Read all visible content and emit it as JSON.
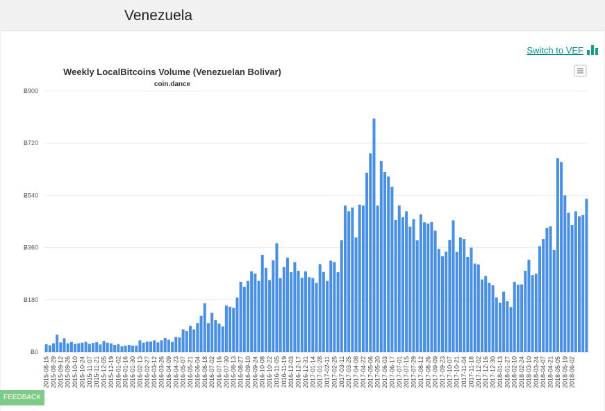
{
  "page": {
    "country": "Venezuela"
  },
  "toolbar": {
    "switch_label": "Switch to VEF",
    "switch_icon": "bar-chart-icon",
    "menu_icon": "hamburger-menu-icon"
  },
  "feedback": {
    "label": "FEEDBACK"
  },
  "colors": {
    "bar": "#4a90e2",
    "link": "#008c8c",
    "feedback": "#7ecb88"
  },
  "chart_data": {
    "type": "bar",
    "title": "Weekly LocalBitcoins Volume (Venezuelan Bolivar)",
    "subtitle": "coin.dance",
    "xlabel": "",
    "ylabel": "",
    "ylim": [
      0,
      900
    ],
    "yticks": [
      "Ƀ0",
      "Ƀ180",
      "Ƀ360",
      "Ƀ540",
      "Ƀ720",
      "Ƀ900"
    ],
    "grid": true,
    "x_tick_labels": [
      "2015-08-15",
      "2015-08-29",
      "2015-09-12",
      "2015-09-26",
      "2015-10-10",
      "2015-10-24",
      "2015-11-07",
      "2015-11-21",
      "2015-12-05",
      "2015-12-19",
      "2016-01-02",
      "2016-01-16",
      "2016-01-30",
      "2016-02-13",
      "2016-02-27",
      "2016-03-12",
      "2016-03-26",
      "2016-04-09",
      "2016-04-23",
      "2016-05-07",
      "2016-05-21",
      "2016-06-04",
      "2016-06-18",
      "2016-07-02",
      "2016-07-16",
      "2016-07-30",
      "2016-08-13",
      "2016-08-27",
      "2016-09-10",
      "2016-09-24",
      "2016-10-08",
      "2016-10-22",
      "2016-11-05",
      "2016-11-19",
      "2016-12-03",
      "2016-12-17",
      "2016-12-31",
      "2017-01-14",
      "2017-01-28",
      "2017-02-11",
      "2017-02-25",
      "2017-03-11",
      "2017-03-25",
      "2017-04-08",
      "2017-04-22",
      "2017-05-06",
      "2017-05-20",
      "2017-06-03",
      "2017-06-17",
      "2017-07-01",
      "2017-07-15",
      "2017-07-29",
      "2017-08-12",
      "2017-08-26",
      "2017-09-09",
      "2017-09-23",
      "2017-10-07",
      "2017-10-21",
      "2017-11-04",
      "2017-11-18",
      "2017-12-02",
      "2017-12-16",
      "2017-12-30",
      "2018-01-13",
      "2018-01-27",
      "2018-02-10",
      "2018-02-24",
      "2018-03-10",
      "2018-03-24",
      "2018-04-07",
      "2018-04-21",
      "2018-05-05",
      "2018-05-19",
      "2018-06-02"
    ],
    "values": [
      27,
      23,
      30,
      60,
      33,
      47,
      30,
      35,
      28,
      30,
      32,
      35,
      28,
      31,
      34,
      26,
      38,
      32,
      30,
      24,
      27,
      20,
      22,
      24,
      22,
      22,
      40,
      32,
      36,
      36,
      40,
      33,
      40,
      48,
      42,
      35,
      52,
      50,
      78,
      72,
      90,
      78,
      100,
      125,
      168,
      100,
      135,
      110,
      98,
      88,
      160,
      156,
      152,
      188,
      242,
      225,
      245,
      278,
      270,
      245,
      335,
      290,
      248,
      316,
      375,
      255,
      293,
      325,
      275,
      310,
      280,
      256,
      278,
      258,
      255,
      238,
      303,
      276,
      245,
      315,
      310,
      275,
      385,
      505,
      485,
      498,
      395,
      508,
      505,
      618,
      685,
      805,
      505,
      658,
      620,
      605,
      570,
      455,
      505,
      465,
      485,
      432,
      458,
      385,
      475,
      447,
      443,
      448,
      418,
      355,
      330,
      346,
      386,
      454,
      345,
      395,
      390,
      328,
      360,
      305,
      302,
      250,
      262,
      238,
      230,
      188,
      170,
      208,
      175,
      155,
      242,
      232,
      233,
      280,
      318,
      265,
      270,
      365,
      390,
      428,
      433,
      352,
      668,
      655,
      540,
      480,
      438,
      485,
      468,
      472,
      528
    ]
  }
}
